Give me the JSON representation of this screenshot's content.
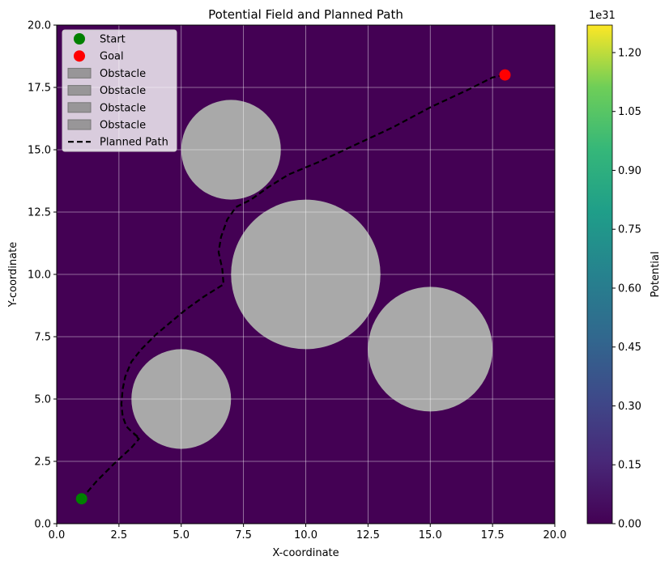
{
  "chart_data": {
    "type": "contour",
    "title": "Potential Field and Planned Path",
    "xlabel": "X-coordinate",
    "ylabel": "Y-coordinate",
    "xlim": [
      0,
      20
    ],
    "ylim": [
      0,
      20
    ],
    "xticks": [
      "0.0",
      "2.5",
      "5.0",
      "7.5",
      "10.0",
      "12.5",
      "15.0",
      "17.5",
      "20.0"
    ],
    "yticks": [
      "0.0",
      "2.5",
      "5.0",
      "7.5",
      "10.0",
      "12.5",
      "15.0",
      "17.5",
      "20.0"
    ],
    "grid": true,
    "legend_position": "top-left",
    "background_color": "#440154",
    "start": {
      "label": "Start",
      "x": 1,
      "y": 1,
      "color": "#008000"
    },
    "goal": {
      "label": "Goal",
      "x": 18,
      "y": 18,
      "color": "#ff0000"
    },
    "obstacles": [
      {
        "label": "Obstacle",
        "cx": 7,
        "cy": 15,
        "r": 2,
        "color": "#a9a9a9"
      },
      {
        "label": "Obstacle",
        "cx": 10,
        "cy": 10,
        "r": 3,
        "color": "#a9a9a9"
      },
      {
        "label": "Obstacle",
        "cx": 15,
        "cy": 7,
        "r": 2.5,
        "color": "#a9a9a9"
      },
      {
        "label": "Obstacle",
        "cx": 5,
        "cy": 5,
        "r": 2,
        "color": "#a9a9a9"
      }
    ],
    "path": {
      "label": "Planned Path",
      "color": "#000000",
      "points": [
        [
          1,
          1
        ],
        [
          1.6,
          1.7
        ],
        [
          2.3,
          2.4
        ],
        [
          3.0,
          3.05
        ],
        [
          3.3,
          3.4
        ],
        [
          3.1,
          3.6
        ],
        [
          3.3,
          3.45
        ],
        [
          3.0,
          3.7
        ],
        [
          2.8,
          3.9
        ],
        [
          2.65,
          4.3
        ],
        [
          2.6,
          4.8
        ],
        [
          2.65,
          5.4
        ],
        [
          2.75,
          5.9
        ],
        [
          3.0,
          6.5
        ],
        [
          3.4,
          7.0
        ],
        [
          4.0,
          7.6
        ],
        [
          4.6,
          8.1
        ],
        [
          5.2,
          8.6
        ],
        [
          5.9,
          9.1
        ],
        [
          6.7,
          9.6
        ],
        [
          6.65,
          10.2
        ],
        [
          6.5,
          10.9
        ],
        [
          6.6,
          11.5
        ],
        [
          6.85,
          12.2
        ],
        [
          7.2,
          12.7
        ],
        [
          7.8,
          13.0
        ],
        [
          8.5,
          13.5
        ],
        [
          9.3,
          14.0
        ],
        [
          10.5,
          14.5
        ],
        [
          12.0,
          15.2
        ],
        [
          13.5,
          15.9
        ],
        [
          15.0,
          16.7
        ],
        [
          16.5,
          17.4
        ],
        [
          17.5,
          17.9
        ],
        [
          18,
          18
        ]
      ]
    },
    "colorbar": {
      "label": "Potential",
      "exponent": "1e31",
      "ticks": [
        "0.00",
        "0.15",
        "0.30",
        "0.45",
        "0.60",
        "0.75",
        "0.90",
        "1.05",
        "1.20"
      ],
      "tick_values": [
        0,
        0.15,
        0.3,
        0.45,
        0.6,
        0.75,
        0.9,
        1.05,
        1.2
      ],
      "max": 1.27,
      "colormap": "viridis"
    }
  }
}
